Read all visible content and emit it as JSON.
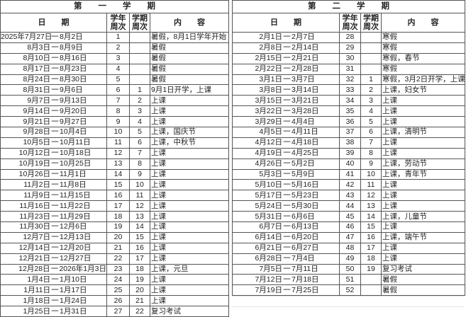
{
  "headers": {
    "date": "日　　期",
    "year_week": [
      "学年",
      "周次"
    ],
    "term_week": [
      "学期",
      "周次"
    ],
    "content": "内　　容",
    "dash": "一"
  },
  "term1": {
    "title": "第　　一　　学　　期",
    "rows": [
      [
        "2025年7月27日",
        "8月2日",
        "1",
        "",
        "暑假，8月1日学年开始"
      ],
      [
        "8月3日",
        "8月9日",
        "2",
        "",
        "暑假"
      ],
      [
        "8月10日",
        "8月16日",
        "3",
        "",
        "暑假"
      ],
      [
        "8月17日",
        "8月23日",
        "4",
        "",
        "暑假"
      ],
      [
        "8月24日",
        "8月30日",
        "5",
        "",
        "暑假"
      ],
      [
        "8月31日",
        "9月6日",
        "6",
        "1",
        "9月1日开学，上课"
      ],
      [
        "9月7日",
        "9月13日",
        "7",
        "2",
        "上课"
      ],
      [
        "9月14日",
        "9月20日",
        "8",
        "3",
        "上课"
      ],
      [
        "9月21日",
        "9月27日",
        "9",
        "4",
        "上课"
      ],
      [
        "9月28日",
        "10月4日",
        "10",
        "5",
        "上课，国庆节"
      ],
      [
        "10月5日",
        "10月11日",
        "11",
        "6",
        "上课，中秋节"
      ],
      [
        "10月12日",
        "10月18日",
        "12",
        "7",
        "上课"
      ],
      [
        "10月19日",
        "10月25日",
        "13",
        "8",
        "上课"
      ],
      [
        "10月26日",
        "11月1日",
        "14",
        "9",
        "上课"
      ],
      [
        "11月2日",
        "11月8日",
        "15",
        "10",
        "上课"
      ],
      [
        "11月9日",
        "11月15日",
        "16",
        "11",
        "上课"
      ],
      [
        "11月16日",
        "11月22日",
        "17",
        "12",
        "上课"
      ],
      [
        "11月23日",
        "11月29日",
        "18",
        "13",
        "上课"
      ],
      [
        "11月30日",
        "12月6日",
        "19",
        "14",
        "上课"
      ],
      [
        "12月7日",
        "12月13日",
        "20",
        "15",
        "上课"
      ],
      [
        "12月14日",
        "12月20日",
        "21",
        "16",
        "上课"
      ],
      [
        "12月21日",
        "12月27日",
        "22",
        "17",
        "上课"
      ],
      [
        "12月28日",
        "2026年1月3日",
        "23",
        "18",
        "上课，元旦"
      ],
      [
        "1月4日",
        "1月10日",
        "24",
        "19",
        "上课"
      ],
      [
        "1月11日",
        "1月17日",
        "25",
        "20",
        "上课"
      ],
      [
        "1月18日",
        "1月24日",
        "26",
        "21",
        "上课"
      ],
      [
        "1月25日",
        "1月31日",
        "27",
        "22",
        "复习考试"
      ]
    ]
  },
  "term2": {
    "title": "第　　二　　学　　期",
    "rows": [
      [
        "2月1日",
        "2月7日",
        "28",
        "",
        "寒假"
      ],
      [
        "2月8日",
        "2月14日",
        "29",
        "",
        "寒假"
      ],
      [
        "2月15日",
        "2月21日",
        "30",
        "",
        "寒假，春节"
      ],
      [
        "2月22日",
        "2月28日",
        "31",
        "",
        "寒假"
      ],
      [
        "3月1日",
        "3月7日",
        "32",
        "1",
        "寒假，3月2日开学，上课"
      ],
      [
        "3月8日",
        "3月14日",
        "33",
        "2",
        "上课，妇女节"
      ],
      [
        "3月15日",
        "3月21日",
        "34",
        "3",
        "上课"
      ],
      [
        "3月22日",
        "3月28日",
        "35",
        "4",
        "上课"
      ],
      [
        "3月29日",
        "4月4日",
        "36",
        "5",
        "上课"
      ],
      [
        "4月5日",
        "4月11日",
        "37",
        "6",
        "上课，清明节"
      ],
      [
        "4月12日",
        "4月18日",
        "38",
        "7",
        "上课"
      ],
      [
        "4月19日",
        "4月25日",
        "39",
        "8",
        "上课"
      ],
      [
        "4月26日",
        "5月2日",
        "40",
        "9",
        "上课，劳动节"
      ],
      [
        "5月3日",
        "5月9日",
        "41",
        "10",
        "上课，青年节"
      ],
      [
        "5月10日",
        "5月16日",
        "42",
        "11",
        "上课"
      ],
      [
        "5月17日",
        "5月23日",
        "43",
        "12",
        "上课"
      ],
      [
        "5月24日",
        "5月30日",
        "44",
        "13",
        "上课"
      ],
      [
        "5月31日",
        "6月6日",
        "45",
        "14",
        "上课，儿童节"
      ],
      [
        "6月7日",
        "6月13日",
        "46",
        "15",
        "上课"
      ],
      [
        "6月14日",
        "6月20日",
        "47",
        "16",
        "上课，端午节"
      ],
      [
        "6月21日",
        "6月27日",
        "48",
        "17",
        "上课"
      ],
      [
        "6月28日",
        "7月4日",
        "49",
        "18",
        "上课"
      ],
      [
        "7月5日",
        "7月11日",
        "50",
        "19",
        "复习考试"
      ],
      [
        "7月12日",
        "7月18日",
        "51",
        "",
        "暑假"
      ],
      [
        "7月19日",
        "7月25日",
        "52",
        "",
        "暑假"
      ]
    ]
  }
}
